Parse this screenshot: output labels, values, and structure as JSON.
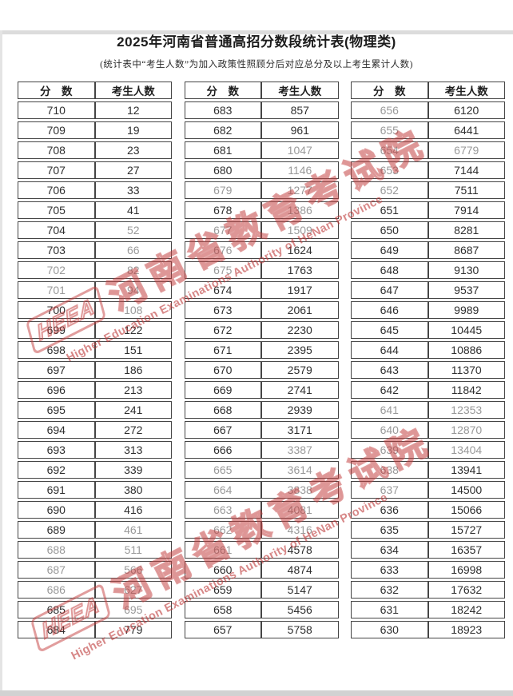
{
  "page": {
    "title": "2025年河南省普通高招分数段统计表(物理类)",
    "subtitle": "(统计表中“考生人数”为加入政策性照顾分后对应总分及以上考生累计人数)"
  },
  "columns": {
    "score": "分　数",
    "count": "考生人数"
  },
  "watermark": {
    "logo": "HEEA",
    "cn": "河南省教育考试院",
    "en": "Higher Education Examinations Authority of HeNan Province",
    "color": "#c23e3e"
  },
  "tables": [
    {
      "rows": [
        {
          "score": "710",
          "count": "12",
          "f": 0
        },
        {
          "score": "709",
          "count": "19",
          "f": 0
        },
        {
          "score": "708",
          "count": "23",
          "f": 0
        },
        {
          "score": "707",
          "count": "27",
          "f": 0
        },
        {
          "score": "706",
          "count": "33",
          "f": 0
        },
        {
          "score": "705",
          "count": "41",
          "f": 0
        },
        {
          "score": "704",
          "count": "52",
          "f": 1
        },
        {
          "score": "703",
          "count": "66",
          "f": 1
        },
        {
          "score": "702",
          "count": "82",
          "f": 2
        },
        {
          "score": "701",
          "count": "94",
          "f": 2
        },
        {
          "score": "700",
          "count": "108",
          "f": 1
        },
        {
          "score": "699",
          "count": "122",
          "f": 0
        },
        {
          "score": "698",
          "count": "151",
          "f": 0
        },
        {
          "score": "697",
          "count": "186",
          "f": 0
        },
        {
          "score": "696",
          "count": "213",
          "f": 0
        },
        {
          "score": "695",
          "count": "241",
          "f": 0
        },
        {
          "score": "694",
          "count": "272",
          "f": 0
        },
        {
          "score": "693",
          "count": "313",
          "f": 0
        },
        {
          "score": "692",
          "count": "339",
          "f": 0
        },
        {
          "score": "691",
          "count": "380",
          "f": 0
        },
        {
          "score": "690",
          "count": "416",
          "f": 0
        },
        {
          "score": "689",
          "count": "461",
          "f": 1
        },
        {
          "score": "688",
          "count": "511",
          "f": 2
        },
        {
          "score": "687",
          "count": "566",
          "f": 2
        },
        {
          "score": "686",
          "count": "627",
          "f": 2
        },
        {
          "score": "685",
          "count": "695",
          "f": 1
        },
        {
          "score": "684",
          "count": "779",
          "f": 0
        }
      ]
    },
    {
      "rows": [
        {
          "score": "683",
          "count": "857",
          "f": 0
        },
        {
          "score": "682",
          "count": "961",
          "f": 0
        },
        {
          "score": "681",
          "count": "1047",
          "f": 1
        },
        {
          "score": "680",
          "count": "1146",
          "f": 1
        },
        {
          "score": "679",
          "count": "1277",
          "f": 2
        },
        {
          "score": "678",
          "count": "1386",
          "f": 1
        },
        {
          "score": "677",
          "count": "1509",
          "f": 2
        },
        {
          "score": "676",
          "count": "1624",
          "f": 3
        },
        {
          "score": "675",
          "count": "1763",
          "f": 3
        },
        {
          "score": "674",
          "count": "1917",
          "f": 0
        },
        {
          "score": "673",
          "count": "2061",
          "f": 0
        },
        {
          "score": "672",
          "count": "2230",
          "f": 0
        },
        {
          "score": "671",
          "count": "2395",
          "f": 0
        },
        {
          "score": "670",
          "count": "2579",
          "f": 0
        },
        {
          "score": "669",
          "count": "2741",
          "f": 0
        },
        {
          "score": "668",
          "count": "2939",
          "f": 0
        },
        {
          "score": "667",
          "count": "3171",
          "f": 0
        },
        {
          "score": "666",
          "count": "3387",
          "f": 1
        },
        {
          "score": "665",
          "count": "3614",
          "f": 2
        },
        {
          "score": "664",
          "count": "3838",
          "f": 2
        },
        {
          "score": "663",
          "count": "4081",
          "f": 2
        },
        {
          "score": "662",
          "count": "4316",
          "f": 2
        },
        {
          "score": "661",
          "count": "4578",
          "f": 3
        },
        {
          "score": "660",
          "count": "4874",
          "f": 0
        },
        {
          "score": "659",
          "count": "5147",
          "f": 0
        },
        {
          "score": "658",
          "count": "5456",
          "f": 0
        },
        {
          "score": "657",
          "count": "5758",
          "f": 0
        }
      ]
    },
    {
      "rows": [
        {
          "score": "656",
          "count": "6120",
          "f": 3
        },
        {
          "score": "655",
          "count": "6441",
          "f": 3
        },
        {
          "score": "654",
          "count": "6779",
          "f": 2
        },
        {
          "score": "653",
          "count": "7144",
          "f": 3
        },
        {
          "score": "652",
          "count": "7511",
          "f": 3
        },
        {
          "score": "651",
          "count": "7914",
          "f": 0
        },
        {
          "score": "650",
          "count": "8281",
          "f": 0
        },
        {
          "score": "649",
          "count": "8687",
          "f": 0
        },
        {
          "score": "648",
          "count": "9130",
          "f": 0
        },
        {
          "score": "647",
          "count": "9537",
          "f": 0
        },
        {
          "score": "646",
          "count": "9989",
          "f": 0
        },
        {
          "score": "645",
          "count": "10445",
          "f": 0
        },
        {
          "score": "644",
          "count": "10886",
          "f": 0
        },
        {
          "score": "643",
          "count": "11370",
          "f": 0
        },
        {
          "score": "642",
          "count": "11842",
          "f": 0
        },
        {
          "score": "641",
          "count": "12353",
          "f": 2
        },
        {
          "score": "640",
          "count": "12870",
          "f": 2
        },
        {
          "score": "639",
          "count": "13404",
          "f": 2
        },
        {
          "score": "638",
          "count": "13941",
          "f": 3
        },
        {
          "score": "637",
          "count": "14500",
          "f": 3
        },
        {
          "score": "636",
          "count": "15066",
          "f": 0
        },
        {
          "score": "635",
          "count": "15727",
          "f": 0
        },
        {
          "score": "634",
          "count": "16357",
          "f": 0
        },
        {
          "score": "633",
          "count": "16998",
          "f": 0
        },
        {
          "score": "632",
          "count": "17632",
          "f": 0
        },
        {
          "score": "631",
          "count": "18242",
          "f": 0
        },
        {
          "score": "630",
          "count": "18923",
          "f": 0
        }
      ]
    }
  ]
}
